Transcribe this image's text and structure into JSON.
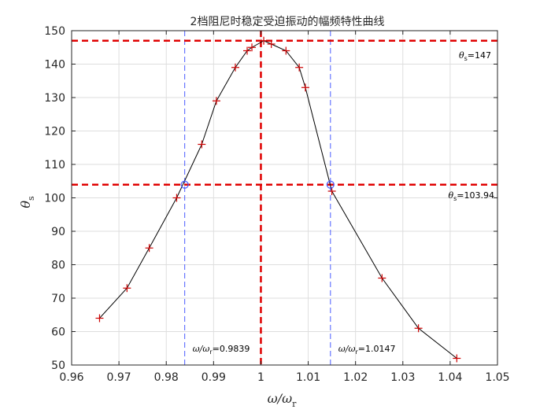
{
  "chart_data": {
    "type": "line",
    "title": "2档阻尼时稳定受迫振动的幅频特性曲线",
    "xlabel": "ω/ω",
    "xlabel_sub": "r",
    "ylabel": "θ",
    "ylabel_sub": "s",
    "xlim": [
      0.96,
      1.05
    ],
    "ylim": [
      50,
      150
    ],
    "xticks": [
      0.96,
      0.97,
      0.98,
      0.99,
      1,
      1.01,
      1.02,
      1.03,
      1.04,
      1.05
    ],
    "xtick_labels": [
      "0.96",
      "0.97",
      "0.98",
      "0.99",
      "1",
      "1.01",
      "1.02",
      "1.03",
      "1.04",
      "1.05"
    ],
    "yticks": [
      50,
      60,
      70,
      80,
      90,
      100,
      110,
      120,
      130,
      140,
      150
    ],
    "ytick_labels": [
      "50",
      "60",
      "70",
      "80",
      "90",
      "100",
      "110",
      "120",
      "130",
      "140",
      "150"
    ],
    "grid": true,
    "series": [
      {
        "color": "#000000",
        "marker_color": "#cc0000",
        "x": [
          0.9659,
          0.9717,
          0.9764,
          0.9822,
          0.9875,
          0.9906,
          0.9946,
          0.9971,
          0.9981,
          1.0006,
          1.0022,
          1.0053,
          1.0081,
          1.0094,
          1.015,
          1.0256,
          1.0333,
          1.0414
        ],
        "y": [
          64,
          73,
          85,
          100,
          116,
          129,
          139,
          144,
          145,
          147,
          146,
          144,
          139,
          133,
          102,
          76,
          61,
          52
        ]
      }
    ],
    "reference_lines": {
      "peak": {
        "y": 147,
        "label_prefix": "θ",
        "label_sub": "s",
        "label_value": "=147"
      },
      "half_power": {
        "y": 103.94,
        "label_prefix": "θ",
        "label_sub": "s",
        "label_value": "=103.94"
      },
      "resonance_x": 1,
      "bandwidth_left": {
        "x": 0.9839,
        "label_prefix": "ω/ω",
        "label_sub": "r",
        "label_value": "=0.9839"
      },
      "bandwidth_right": {
        "x": 1.0147,
        "label_prefix": "ω/ω",
        "label_sub": "r",
        "label_value": "=1.0147"
      }
    },
    "colors": {
      "reference_red": "#e00000",
      "bandwidth_blue": "#4a5cff",
      "grid": "#dedede",
      "axis": "#262626"
    }
  }
}
